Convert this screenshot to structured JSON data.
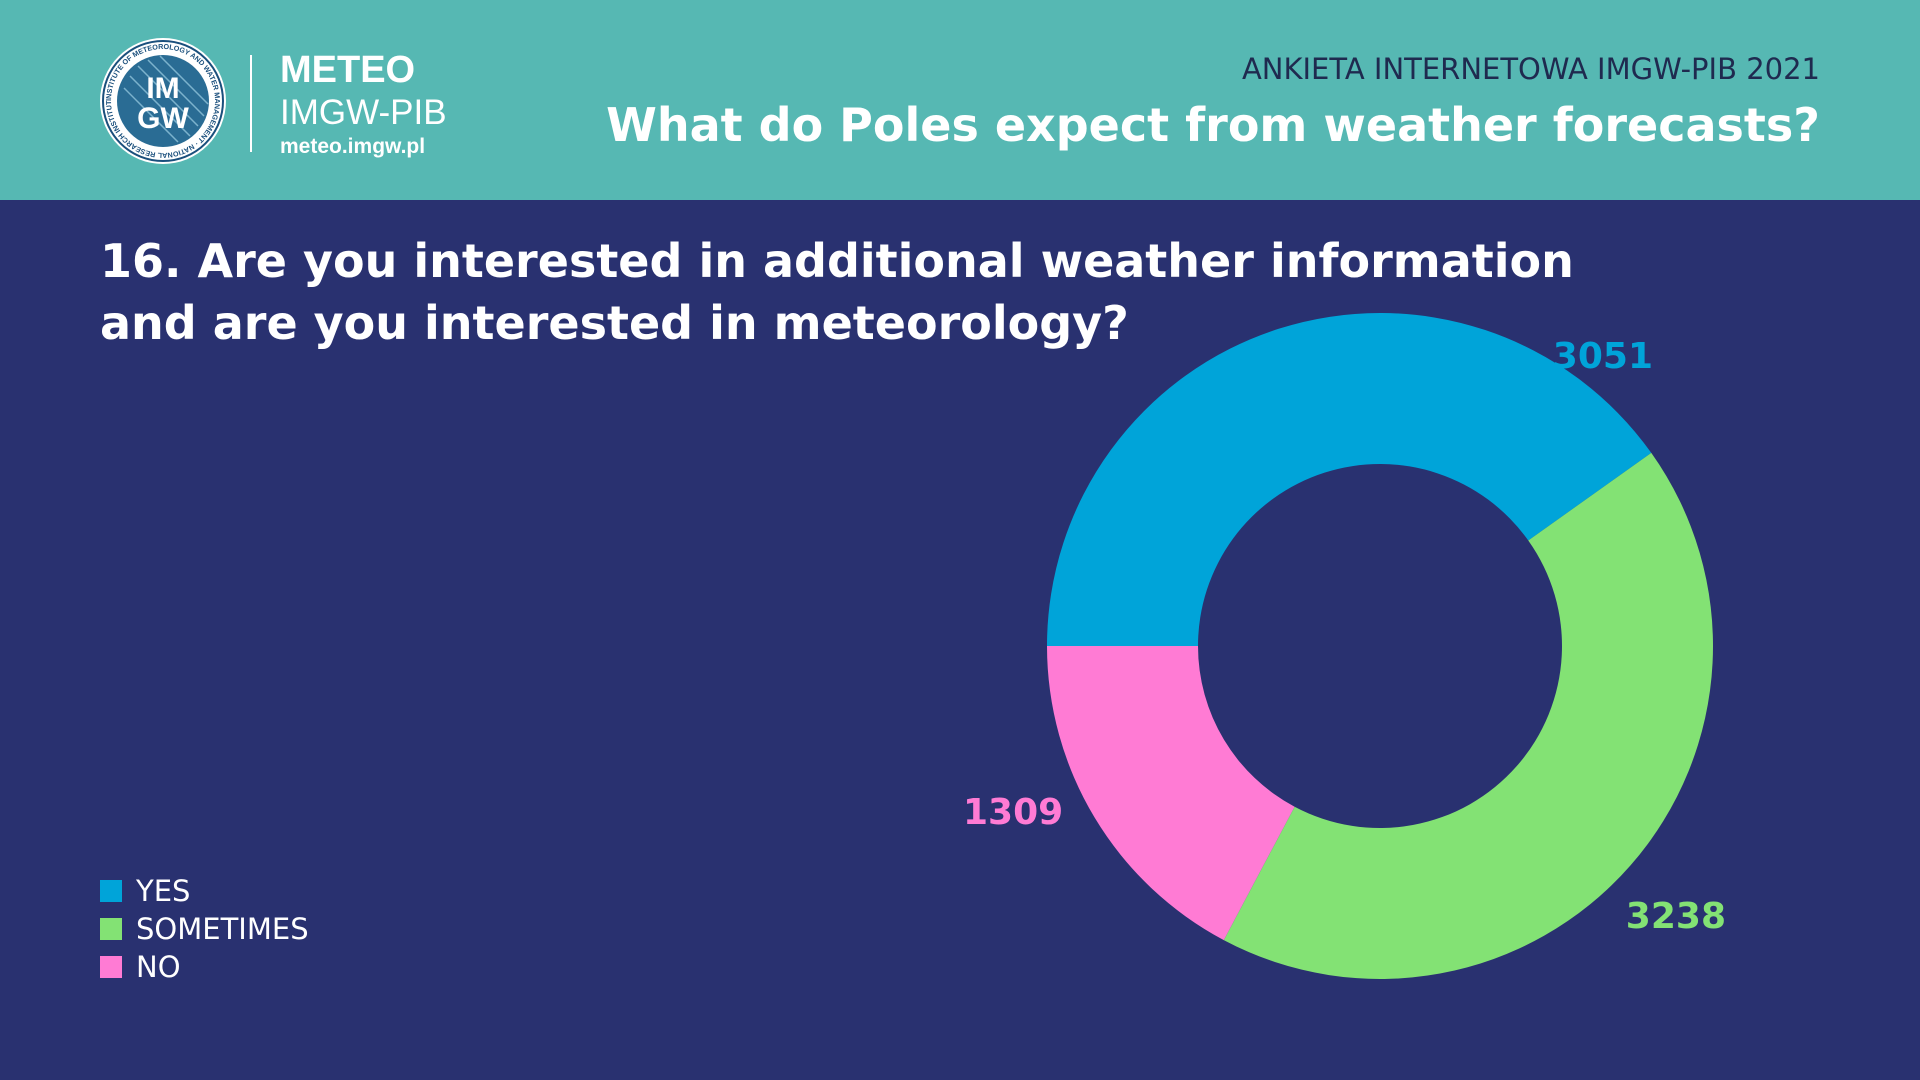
{
  "header": {
    "logo_text_top": "IM",
    "logo_text_bottom": "GW",
    "logo_ring_text": "INSTITUTE OF METEOROLOGY AND WATER MANAGEMENT · NATIONAL RESEARCH INSTITUTE",
    "brand_title": "METEO",
    "brand_subtitle": "IMGW-PIB",
    "brand_url": "meteo.imgw.pl",
    "survey_label": "ANKIETA INTERNETOWA IMGW-PIB 2021",
    "survey_title": "What do Poles expect from weather forecasts?"
  },
  "question": {
    "line1": "16. Are you interested in additional weather information",
    "line2": "and are you interested in meteorology?"
  },
  "colors": {
    "background": "#293170",
    "header": "#56b8b3",
    "yes": "#00a4d9",
    "sometimes": "#83e274",
    "no": "#ff7bd4"
  },
  "chart_data": {
    "type": "pie",
    "donut": true,
    "start": "9 o'clock, clockwise",
    "categories": [
      "YES",
      "SOMETIMES",
      "NO"
    ],
    "values": [
      3051,
      3238,
      1309
    ],
    "colors": [
      "#00a4d9",
      "#83e274",
      "#ff7bd4"
    ],
    "data_labels": [
      "3051",
      "3238",
      "1309"
    ],
    "legend_position": "bottom-left"
  }
}
